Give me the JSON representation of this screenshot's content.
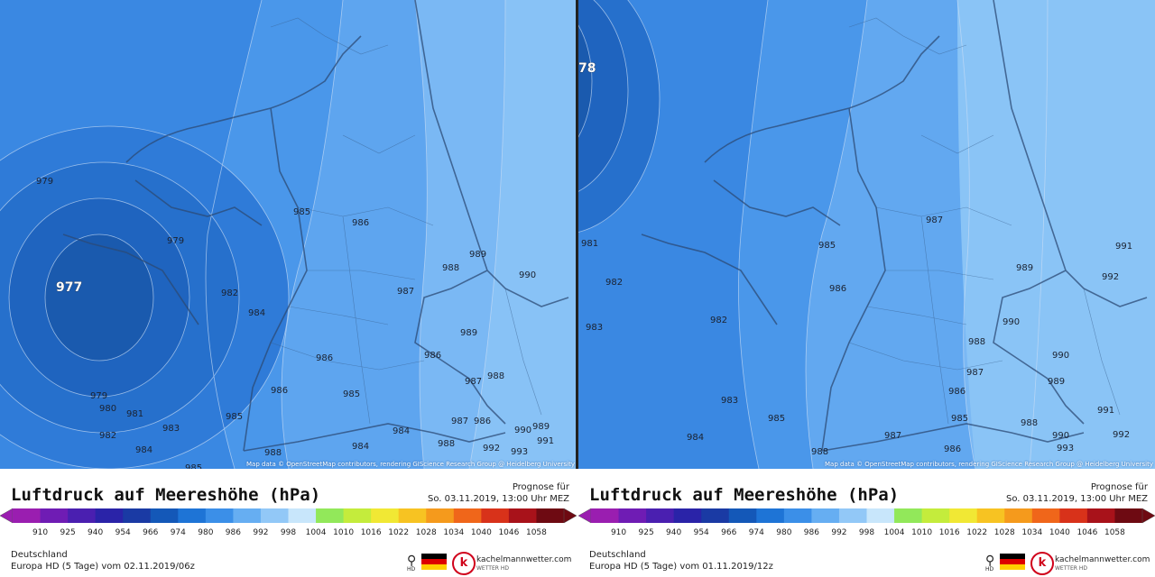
{
  "panels": [
    {
      "attribution": "Map data © OpenStreetMap contributors, rendering GIScience Research Group @ Heidelberg University",
      "title": "Luftdruck auf Meereshöhe (hPa)",
      "prognose_label": "Prognose für",
      "prognose_time": "So. 03.11.2019, 13:00 Uhr MEZ",
      "region": "Deutschland",
      "model": "Europa HD (5 Tage) vom  02.11.2019/06z",
      "brand": "kachelmannwetter.com",
      "brand_sub": "WETTER HD",
      "hd_label": "HD",
      "pressure_labels": [
        {
          "text": "977",
          "big": true
        },
        {
          "text": "979"
        },
        {
          "text": "979"
        },
        {
          "text": "979"
        },
        {
          "text": "980"
        },
        {
          "text": "981"
        },
        {
          "text": "982"
        },
        {
          "text": "982"
        },
        {
          "text": "983"
        },
        {
          "text": "984"
        },
        {
          "text": "984"
        },
        {
          "text": "984"
        },
        {
          "text": "984"
        },
        {
          "text": "985"
        },
        {
          "text": "985"
        },
        {
          "text": "985"
        },
        {
          "text": "985"
        },
        {
          "text": "986"
        },
        {
          "text": "986"
        },
        {
          "text": "986"
        },
        {
          "text": "986"
        },
        {
          "text": "986"
        },
        {
          "text": "987"
        },
        {
          "text": "987"
        },
        {
          "text": "987"
        },
        {
          "text": "988"
        },
        {
          "text": "988"
        },
        {
          "text": "988"
        },
        {
          "text": "988"
        },
        {
          "text": "989"
        },
        {
          "text": "989"
        },
        {
          "text": "989"
        },
        {
          "text": "990"
        },
        {
          "text": "990"
        },
        {
          "text": "991"
        },
        {
          "text": "992"
        },
        {
          "text": "993"
        }
      ]
    },
    {
      "attribution": "Map data © OpenStreetMap contributors, rendering GIScience Research Group @ Heidelberg University",
      "title": "Luftdruck auf Meereshöhe (hPa)",
      "prognose_label": "Prognose für",
      "prognose_time": "So. 03.11.2019, 13:00 Uhr MEZ",
      "region": "Deutschland",
      "model": "Europa HD (5 Tage) vom  01.11.2019/12z",
      "brand": "kachelmannwetter.com",
      "brand_sub": "WETTER HD",
      "hd_label": "HD",
      "pressure_labels": [
        {
          "text": "78",
          "big": true
        },
        {
          "text": "981"
        },
        {
          "text": "982"
        },
        {
          "text": "982"
        },
        {
          "text": "983"
        },
        {
          "text": "983"
        },
        {
          "text": "984"
        },
        {
          "text": "985"
        },
        {
          "text": "985"
        },
        {
          "text": "985"
        },
        {
          "text": "986"
        },
        {
          "text": "986"
        },
        {
          "text": "986"
        },
        {
          "text": "987"
        },
        {
          "text": "987"
        },
        {
          "text": "987"
        },
        {
          "text": "988"
        },
        {
          "text": "988"
        },
        {
          "text": "988"
        },
        {
          "text": "989"
        },
        {
          "text": "989"
        },
        {
          "text": "990"
        },
        {
          "text": "990"
        },
        {
          "text": "990"
        },
        {
          "text": "991"
        },
        {
          "text": "991"
        },
        {
          "text": "992"
        },
        {
          "text": "992"
        },
        {
          "text": "993"
        }
      ]
    }
  ],
  "scale_ticks": [
    "910",
    "925",
    "940",
    "954",
    "966",
    "974",
    "980",
    "986",
    "992",
    "998",
    "1004",
    "1010",
    "1016",
    "1022",
    "1028",
    "1034",
    "1040",
    "1046",
    "1058"
  ],
  "scale_colors": [
    "#9a1eb0",
    "#6f1cb4",
    "#4a1fb0",
    "#2a23a8",
    "#1a3aa4",
    "#1458b8",
    "#1e74d6",
    "#3b8fe8",
    "#66aef2",
    "#92c8f7",
    "#c8e6fb",
    "#92e85a",
    "#c4ec3c",
    "#f1e834",
    "#f7c322",
    "#f59a1c",
    "#f0661a",
    "#d8321a",
    "#a8121a",
    "#6e0a12"
  ],
  "flag_colors": [
    "#000000",
    "#dd0000",
    "#ffce00"
  ],
  "brand_letter": "k"
}
